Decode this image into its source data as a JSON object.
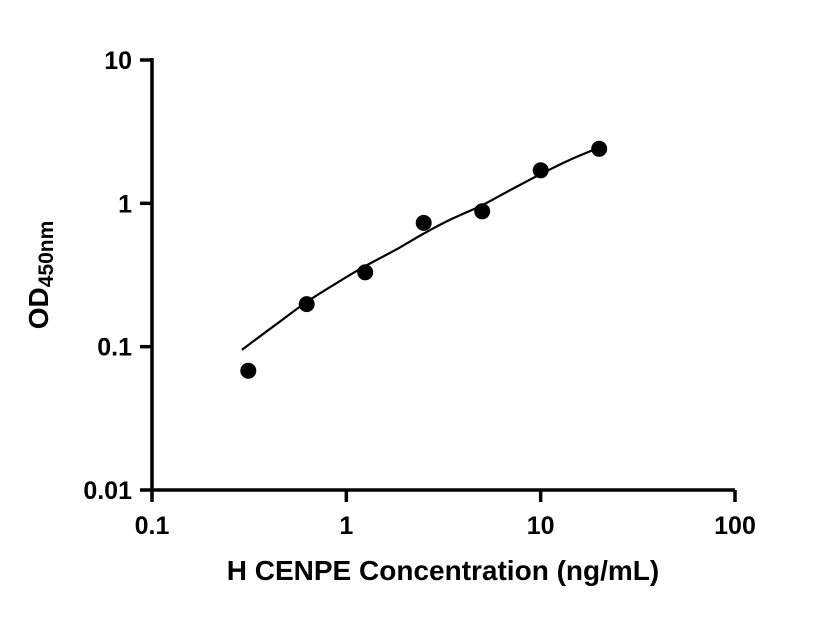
{
  "chart_data": {
    "type": "scatter",
    "title": "",
    "xlabel": "H CENPE Concentration (ng/mL)",
    "ylabel_main": "OD",
    "ylabel_sub": "450nm",
    "x_scale": "log",
    "y_scale": "log",
    "xlim": [
      0.1,
      100
    ],
    "ylim": [
      0.01,
      10
    ],
    "grid": false,
    "legend": false,
    "axis_color": "#000000",
    "x_ticks": {
      "values": [
        0.1,
        1,
        10,
        100
      ],
      "labels": [
        "0.1",
        "1",
        "10",
        "100"
      ]
    },
    "y_ticks": {
      "values": [
        0.01,
        0.1,
        1,
        10
      ],
      "labels": [
        "0.01",
        "0.1",
        "1",
        "10"
      ]
    },
    "series": [
      {
        "name": "standard-points",
        "type": "scatter",
        "marker": "circle",
        "color": "#000000",
        "x": [
          0.313,
          0.625,
          1.25,
          2.5,
          5,
          10,
          20
        ],
        "y": [
          0.068,
          0.198,
          0.33,
          0.73,
          0.88,
          1.7,
          2.4
        ]
      },
      {
        "name": "fit-curve",
        "type": "line",
        "color": "#000000",
        "x": [
          0.29,
          0.45,
          0.625,
          0.9,
          1.25,
          1.8,
          2.5,
          3.5,
          5,
          7,
          10,
          14,
          20
        ],
        "y": [
          0.095,
          0.148,
          0.205,
          0.28,
          0.365,
          0.475,
          0.615,
          0.78,
          0.97,
          1.24,
          1.6,
          2.0,
          2.45
        ]
      }
    ]
  }
}
